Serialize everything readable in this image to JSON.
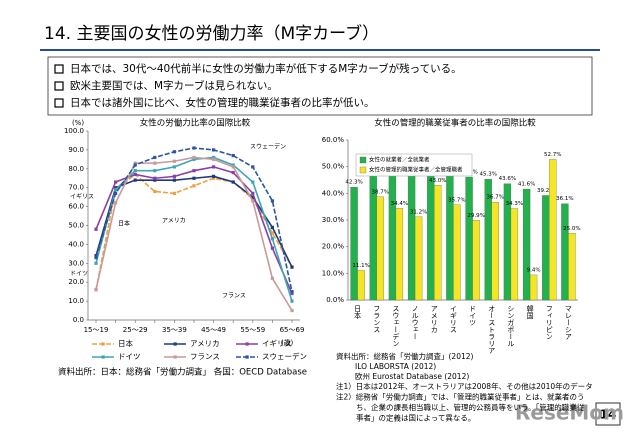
{
  "slide": {
    "title": "14. 主要国の女性の労働力率（M字カーブ）",
    "bullets": [
      "日本では、30代～40代前半に女性の労働力率が低下するM字カーブが残っている。",
      "欧米主要国では、M字カーブは見られない。",
      "日本では諸外国に比べ、女性の管理的職業従事者の比率が低い。"
    ],
    "page_number": "14",
    "watermark": "ReseMom"
  },
  "chart_data": [
    {
      "type": "line",
      "title": "女性の労働力比率の国際比較",
      "y_label": "(%)",
      "x_label": "(歳)",
      "categories": [
        "15～19",
        null,
        "25～29",
        null,
        "35～39",
        null,
        "45～49",
        null,
        "55～59",
        null,
        "65～69"
      ],
      "ylim": [
        0,
        100
      ],
      "yticks": [
        {
          "value": 0,
          "label": "0.0"
        },
        {
          "value": 10,
          "label": "10.0"
        },
        {
          "value": 20,
          "label": "20.0"
        },
        {
          "value": 30,
          "label": "30.0"
        },
        {
          "value": 40,
          "label": "40.0"
        },
        {
          "value": 50,
          "label": "50.0"
        },
        {
          "value": 60,
          "label": "60.0"
        },
        {
          "value": 70,
          "label": "70.0"
        },
        {
          "value": 80,
          "label": "80.0"
        },
        {
          "value": 90,
          "label": "90.0"
        },
        {
          "value": 100,
          "label": "100.0"
        }
      ],
      "grid": false,
      "legend": "bottom",
      "series": [
        {
          "name": "日本",
          "color": "#f0a040",
          "dashed": true,
          "values": [
            16,
            69,
            77,
            68,
            67,
            71,
            75,
            73,
            64,
            46,
            28
          ]
        },
        {
          "name": "アメリカ",
          "color": "#1f3a7a",
          "dashed": false,
          "values": [
            34,
            70,
            74,
            74,
            74,
            75,
            76,
            73,
            65,
            49,
            28
          ]
        },
        {
          "name": "イギリス",
          "color": "#8a3fa8",
          "dashed": false,
          "values": [
            48,
            73,
            77,
            75,
            76,
            79,
            81,
            78,
            67,
            38,
            14
          ]
        },
        {
          "name": "ドイツ",
          "color": "#3fa5b5",
          "dashed": false,
          "values": [
            30,
            69,
            79,
            79,
            81,
            85,
            86,
            82,
            73,
            43,
            10
          ]
        },
        {
          "name": "フランス",
          "color": "#c79a9a",
          "dashed": false,
          "values": [
            16,
            62,
            83,
            83,
            84,
            86,
            85,
            81,
            63,
            22,
            5
          ]
        },
        {
          "name": "スウェーデン",
          "color": "#2a55a0",
          "dashed": true,
          "values": [
            33,
            67,
            82,
            86,
            89,
            91,
            90,
            87,
            81,
            63,
            15
          ]
        }
      ],
      "annotations": [
        "スウェーデン",
        "イギリス",
        "アメリカ",
        "日本",
        "ドイツ",
        "フランス"
      ],
      "source": "資料出所：日本：総務省「労働力調査」 各国：OECD Database"
    },
    {
      "type": "bar",
      "title": "女性の管理的職業従事者の比率の国際比較",
      "categories": [
        "日本",
        "フランス",
        "スウェーデン",
        "ノルウェー",
        "アメリカ",
        "イギリス",
        "ドイツ",
        "オーストラリア",
        "シンガポール",
        "韓国",
        "フィリピン",
        "マレーシア"
      ],
      "ylim": [
        0,
        60
      ],
      "yticks": [
        {
          "value": 0,
          "label": "0.0%"
        },
        {
          "value": 10,
          "label": "10.0%"
        },
        {
          "value": 20,
          "label": "20.0%"
        },
        {
          "value": 30,
          "label": "30.0%"
        },
        {
          "value": 40,
          "label": "40.0%"
        },
        {
          "value": 50,
          "label": "50.0%"
        },
        {
          "value": 60,
          "label": "60.0%"
        }
      ],
      "grid": false,
      "legend": "upper left",
      "series": [
        {
          "name": "女性の就業者／全就業者",
          "color": "#22b14c",
          "values": [
            42.3,
            47.5,
            47.4,
            47.2,
            47.2,
            46.5,
            46.1,
            45.3,
            43.6,
            41.6,
            39.2,
            36.1
          ],
          "value_labels": [
            "42.3%",
            "47.5%",
            "47.4%",
            "47.2%",
            "47.2%",
            "46.5%",
            "46.1%",
            "45.3%",
            "43.6%",
            "41.6%",
            "39.2%",
            "36.1%"
          ]
        },
        {
          "name": "女性の管理的職業従事者／全管理職者",
          "color": "#f5e625",
          "values": [
            11.1,
            38.7,
            34.4,
            31.2,
            43.0,
            35.7,
            29.9,
            36.7,
            34.3,
            9.4,
            52.7,
            25.0
          ],
          "value_labels": [
            "11.1%",
            "38.7%",
            "34.4%",
            "31.2%",
            "43.0%",
            "35.7%",
            "29.9%",
            "36.7%",
            "34.3%",
            "9.4%",
            "52.7%",
            "25.0%"
          ]
        }
      ],
      "source": [
        "資料出所：総務省「労働力調査」(2012)",
        "ILO LABORSTA (2012)",
        "欧州 Eurostat Database (2012)"
      ],
      "notes": [
        "注1）日本は2012年、オーストラリアは2008年、その他は2010年のデータ",
        "注2）総務省「労働力調査」では、「管理的職業従事者」とは、就業者のう",
        "ち、企業の課長相当職以上、管理的公務員等をいう。「管理的職業従",
        "事者」の定義は国によって異なる。"
      ]
    }
  ]
}
